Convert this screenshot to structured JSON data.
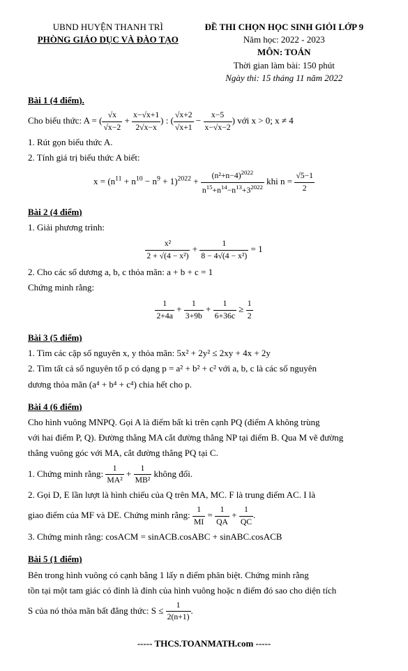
{
  "header": {
    "left1": "UBND HUYỆN THANH TRÌ",
    "left2": "PHÒNG GIÁO DỤC VÀ ĐÀO TẠO",
    "right1": "ĐỀ THI CHỌN HỌC SINH GIỎI LỚP 9",
    "right2": "Năm học: 2022 - 2023",
    "right3": "MÔN: TOÁN",
    "right4": "Thời gian làm bài: 150 phút",
    "right5": "Ngày thi: 15 tháng 11 năm 2022"
  },
  "bai1": {
    "title": "Bài 1 (4 điểm).",
    "cho": "Cho biểu thức: A = ",
    "cond": " với x > 0; x ≠ 4",
    "item1": "1. Rút gọn biểu thức A.",
    "item2": "2. Tính giá trị biểu thức A biết:",
    "khi": " khi n = "
  },
  "bai2": {
    "title": "Bài 2 (4 điểm)",
    "item1": "1. Giải phương trình:",
    "item2": "2. Cho các số dương a, b, c thỏa mãn: a + b + c = 1",
    "chung": "Chứng minh rằng:"
  },
  "bai3": {
    "title": "Bài 3 (5 điểm)",
    "item1": "1. Tìm các cặp số nguyên x, y thỏa mãn: 5x² + 2y² ≤ 2xy + 4x + 2y",
    "item2a": "2. Tìm tất cả số nguyên tố p có dạng p = a² + b² + c² với a, b, c là các số nguyên",
    "item2b": "dương thỏa mãn (a⁴ + b⁴ + c⁴) chia hết cho p."
  },
  "bai4": {
    "title": "Bài 4 (6 điểm)",
    "intro1": "Cho hình vuông MNPQ. Gọi A là điểm bất kì trên cạnh PQ (điểm A không trùng",
    "intro2": "với hai điểm P, Q). Đường thẳng MA cắt đường thẳng NP tại điểm B. Qua M vẽ đường",
    "intro3": "thẳng vuông góc với MA, cắt đường thẳng PQ tại C.",
    "item1": "1. Chứng minh rằng: ",
    "item1end": " không đổi.",
    "item2a": "2. Gọi D, E lần lượt là hình chiếu của Q trên MA, MC. F là trung điểm AC. I là",
    "item2b": "giao điểm của MF và DE. Chứng minh rằng: ",
    "item3": "3. Chứng minh rằng: cosACM = sinACB.cosABC + sinABC.cosACB"
  },
  "bai5": {
    "title": "Bài 5 (1 điểm)",
    "p1": "Bên trong hình vuông có cạnh bằng 1 lấy n điểm phân biệt. Chứng minh rằng",
    "p2": "tồn tại một tam giác có đỉnh là đỉnh của hình vuông hoặc n điểm đó sao cho diện tích",
    "p3": "S của nó thỏa mãn bất đẳng thức: S ≤ "
  },
  "footer": "----- THCS.TOANMATH.com -----"
}
